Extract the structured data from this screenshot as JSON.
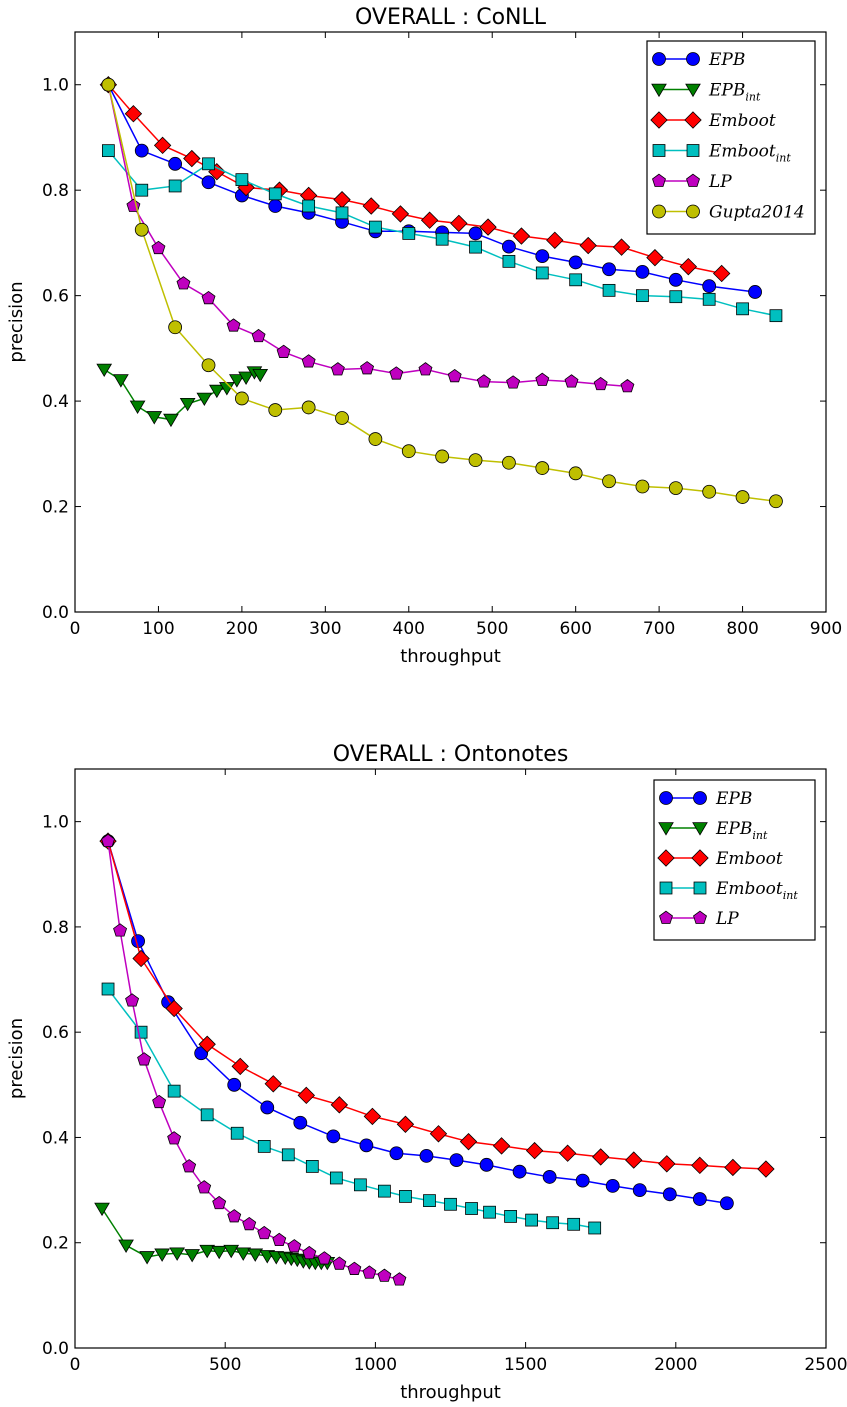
{
  "chart_data": [
    {
      "type": "line",
      "title": "OVERALL : CoNLL",
      "xlabel": "throughput",
      "ylabel": "precision",
      "xlim": [
        0,
        900
      ],
      "ylim": [
        0,
        1.1
      ],
      "xticks": [
        "0",
        "100",
        "200",
        "300",
        "400",
        "500",
        "600",
        "700",
        "800",
        "900"
      ],
      "yticks": [
        "0.0",
        "0.2",
        "0.4",
        "0.6",
        "0.8",
        "1.0"
      ],
      "legend": "top-right",
      "series": [
        {
          "name": "EPB",
          "sub": "",
          "color": "#0000ff",
          "marker": "circle",
          "x": [
            40,
            80,
            120,
            160,
            200,
            240,
            280,
            320,
            360,
            400,
            440,
            480,
            520,
            560,
            600,
            640,
            680,
            720,
            760,
            815
          ],
          "y": [
            1.0,
            0.875,
            0.85,
            0.815,
            0.79,
            0.77,
            0.757,
            0.74,
            0.722,
            0.722,
            0.72,
            0.718,
            0.693,
            0.675,
            0.663,
            0.65,
            0.645,
            0.63,
            0.618,
            0.607
          ]
        },
        {
          "name": "EPB",
          "sub": "int",
          "color": "#008000",
          "marker": "triangle",
          "x": [
            35,
            55,
            75,
            95,
            115,
            135,
            155,
            170,
            182,
            194,
            205,
            215,
            222
          ],
          "y": [
            0.46,
            0.44,
            0.39,
            0.37,
            0.365,
            0.395,
            0.405,
            0.42,
            0.425,
            0.44,
            0.445,
            0.455,
            0.45
          ]
        },
        {
          "name": "Emboot",
          "sub": "",
          "color": "#ff0000",
          "marker": "diamond",
          "x": [
            40,
            70,
            105,
            140,
            170,
            205,
            245,
            280,
            320,
            355,
            390,
            425,
            460,
            495,
            535,
            575,
            615,
            655,
            695,
            735,
            775
          ],
          "y": [
            1.0,
            0.945,
            0.885,
            0.86,
            0.835,
            0.805,
            0.8,
            0.79,
            0.782,
            0.77,
            0.755,
            0.743,
            0.737,
            0.73,
            0.713,
            0.705,
            0.695,
            0.692,
            0.672,
            0.655,
            0.642
          ]
        },
        {
          "name": "Emboot",
          "sub": "int",
          "color": "#00bfbf",
          "marker": "square",
          "x": [
            40,
            80,
            120,
            160,
            200,
            240,
            280,
            320,
            360,
            400,
            440,
            480,
            520,
            560,
            600,
            640,
            680,
            720,
            760,
            800,
            840
          ],
          "y": [
            0.875,
            0.8,
            0.808,
            0.85,
            0.82,
            0.793,
            0.77,
            0.757,
            0.73,
            0.718,
            0.707,
            0.692,
            0.665,
            0.643,
            0.63,
            0.61,
            0.6,
            0.598,
            0.593,
            0.575,
            0.562
          ]
        },
        {
          "name": "LP",
          "sub": "",
          "color": "#bf00bf",
          "marker": "pentagon",
          "x": [
            40,
            70,
            100,
            130,
            160,
            190,
            220,
            250,
            280,
            315,
            350,
            385,
            420,
            455,
            490,
            525,
            560,
            595,
            630,
            662
          ],
          "y": [
            1.0,
            0.77,
            0.69,
            0.623,
            0.595,
            0.543,
            0.523,
            0.493,
            0.475,
            0.46,
            0.462,
            0.452,
            0.46,
            0.447,
            0.437,
            0.435,
            0.44,
            0.437,
            0.432,
            0.428
          ]
        },
        {
          "name": "Gupta2014",
          "sub": "",
          "color": "#bfbf00",
          "marker": "circle",
          "x": [
            40,
            80,
            120,
            160,
            200,
            240,
            280,
            320,
            360,
            400,
            440,
            480,
            520,
            560,
            600,
            640,
            680,
            720,
            760,
            800,
            840
          ],
          "y": [
            1.0,
            0.725,
            0.54,
            0.468,
            0.405,
            0.383,
            0.388,
            0.368,
            0.328,
            0.305,
            0.295,
            0.288,
            0.283,
            0.273,
            0.263,
            0.248,
            0.238,
            0.235,
            0.228,
            0.218,
            0.21
          ]
        }
      ]
    },
    {
      "type": "line",
      "title": "OVERALL : Ontonotes",
      "xlabel": "throughput",
      "ylabel": "precision",
      "xlim": [
        0,
        2500
      ],
      "ylim": [
        0,
        1.1
      ],
      "xticks": [
        "0",
        "500",
        "1000",
        "1500",
        "2000",
        "2500"
      ],
      "yticks": [
        "0.0",
        "0.2",
        "0.4",
        "0.6",
        "0.8",
        "1.0"
      ],
      "legend": "top-right",
      "series": [
        {
          "name": "EPB",
          "sub": "",
          "color": "#0000ff",
          "marker": "circle",
          "x": [
            110,
            210,
            310,
            420,
            530,
            640,
            750,
            860,
            970,
            1070,
            1170,
            1270,
            1370,
            1480,
            1580,
            1690,
            1790,
            1880,
            1980,
            2080,
            2170
          ],
          "y": [
            0.963,
            0.773,
            0.657,
            0.56,
            0.5,
            0.457,
            0.428,
            0.402,
            0.385,
            0.37,
            0.365,
            0.357,
            0.348,
            0.335,
            0.325,
            0.318,
            0.308,
            0.3,
            0.292,
            0.283,
            0.275
          ]
        },
        {
          "name": "EPB",
          "sub": "int",
          "color": "#008000",
          "marker": "triangle",
          "x": [
            90,
            170,
            240,
            290,
            340,
            390,
            440,
            480,
            520,
            560,
            600,
            640,
            670,
            700,
            720,
            740,
            760,
            780,
            800,
            820,
            840
          ],
          "y": [
            0.265,
            0.195,
            0.173,
            0.178,
            0.18,
            0.177,
            0.185,
            0.183,
            0.185,
            0.18,
            0.178,
            0.175,
            0.173,
            0.172,
            0.17,
            0.168,
            0.165,
            0.163,
            0.162,
            0.162,
            0.162
          ]
        },
        {
          "name": "Emboot",
          "sub": "",
          "color": "#ff0000",
          "marker": "diamond",
          "x": [
            110,
            220,
            330,
            440,
            550,
            660,
            770,
            880,
            990,
            1100,
            1210,
            1310,
            1420,
            1530,
            1640,
            1750,
            1860,
            1970,
            2080,
            2190,
            2300
          ],
          "y": [
            0.963,
            0.74,
            0.645,
            0.577,
            0.535,
            0.502,
            0.48,
            0.462,
            0.44,
            0.425,
            0.407,
            0.392,
            0.384,
            0.375,
            0.37,
            0.363,
            0.357,
            0.35,
            0.347,
            0.343,
            0.34
          ]
        },
        {
          "name": "Emboot",
          "sub": "int",
          "color": "#00bfbf",
          "marker": "square",
          "x": [
            110,
            220,
            330,
            440,
            540,
            630,
            710,
            790,
            870,
            950,
            1030,
            1100,
            1180,
            1250,
            1320,
            1380,
            1450,
            1520,
            1590,
            1660,
            1730
          ],
          "y": [
            0.682,
            0.6,
            0.488,
            0.443,
            0.408,
            0.383,
            0.367,
            0.345,
            0.323,
            0.31,
            0.298,
            0.288,
            0.28,
            0.273,
            0.265,
            0.258,
            0.25,
            0.243,
            0.238,
            0.235,
            0.228
          ]
        },
        {
          "name": "LP",
          "sub": "",
          "color": "#bf00bf",
          "marker": "pentagon",
          "x": [
            110,
            150,
            190,
            230,
            280,
            330,
            380,
            430,
            480,
            530,
            580,
            630,
            680,
            730,
            780,
            830,
            880,
            930,
            980,
            1030,
            1080
          ],
          "y": [
            0.963,
            0.793,
            0.66,
            0.548,
            0.467,
            0.398,
            0.345,
            0.305,
            0.275,
            0.25,
            0.235,
            0.218,
            0.205,
            0.193,
            0.18,
            0.17,
            0.16,
            0.15,
            0.143,
            0.137,
            0.13
          ]
        }
      ]
    }
  ]
}
